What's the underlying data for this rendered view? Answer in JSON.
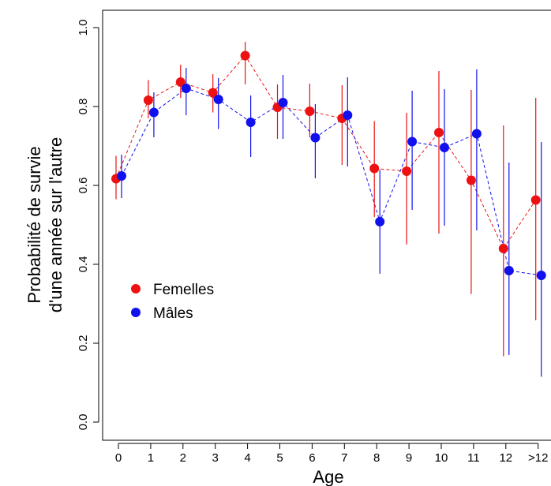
{
  "chart_data": {
    "type": "scatter",
    "xlabel": "Age",
    "ylabel_lines": [
      "Probabilité de survie",
      "d'une année sur l'autre"
    ],
    "categories": [
      "0",
      "1",
      "2",
      "3",
      "4",
      "5",
      "6",
      "7",
      "8",
      "9",
      "10",
      "11",
      "12",
      ">12"
    ],
    "ylim": [
      0,
      1
    ],
    "yticks": [
      "0.0",
      "0.2",
      "0.4",
      "0.6",
      "0.8",
      "1.0"
    ],
    "legend_position": "middle-left",
    "series": [
      {
        "name": "Femelles",
        "color": "#ee1111",
        "values": [
          0.617,
          0.816,
          0.862,
          0.835,
          0.929,
          0.798,
          0.788,
          0.77,
          0.643,
          0.636,
          0.734,
          0.613,
          0.44,
          0.563
        ],
        "lower": [
          0.565,
          0.77,
          0.822,
          0.785,
          0.856,
          0.718,
          0.722,
          0.652,
          0.52,
          0.45,
          0.478,
          0.325,
          0.167,
          0.258
        ],
        "upper": [
          0.675,
          0.867,
          0.906,
          0.882,
          0.964,
          0.856,
          0.858,
          0.854,
          0.763,
          0.784,
          0.89,
          0.842,
          0.752,
          0.822
        ]
      },
      {
        "name": "Mâles",
        "color": "#1111ee",
        "values": [
          0.624,
          0.785,
          0.846,
          0.818,
          0.76,
          0.81,
          0.721,
          0.778,
          0.508,
          0.711,
          0.696,
          0.731,
          0.384,
          0.372
        ],
        "lower": [
          0.568,
          0.722,
          0.778,
          0.743,
          0.672,
          0.718,
          0.618,
          0.648,
          0.376,
          0.538,
          0.498,
          0.486,
          0.17,
          0.115
        ],
        "upper": [
          0.678,
          0.836,
          0.898,
          0.872,
          0.828,
          0.88,
          0.806,
          0.874,
          0.64,
          0.84,
          0.844,
          0.894,
          0.658,
          0.71
        ]
      }
    ]
  }
}
